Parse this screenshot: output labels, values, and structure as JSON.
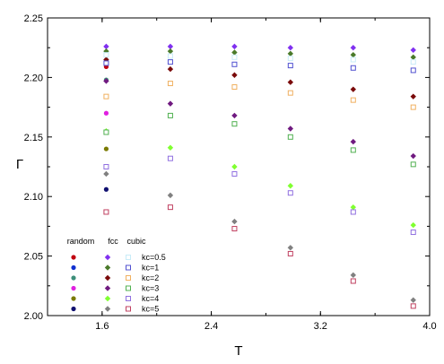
{
  "chart_data": {
    "type": "scatter",
    "title": "",
    "xlabel": "T",
    "ylabel": "Γ",
    "xlim": [
      1.2,
      4.0
    ],
    "ylim": [
      2.0,
      2.25
    ],
    "xticks": [
      1.6,
      2.4,
      3.2,
      4.0
    ],
    "xtick_labels": [
      "1.6",
      "2.4",
      "3.2",
      "4.0"
    ],
    "yticks": [
      2.0,
      2.05,
      2.1,
      2.15,
      2.2,
      2.25
    ],
    "ytick_labels": [
      "2.00",
      "2.05",
      "2.10",
      "2.15",
      "2.20",
      "2.25"
    ],
    "grid": false,
    "legend": {
      "position": "bottom-left",
      "column_headers": [
        "random",
        "fcc",
        "cubic"
      ],
      "rows": [
        "kc=0.5",
        "kc=1",
        "kc=2",
        "kc=3",
        "kc=4",
        "kc=5"
      ]
    },
    "kc_colors": [
      "#c00010",
      "#1030d0",
      "#3d8f7a",
      "#e020e0",
      "#7a7a00",
      "#101070"
    ],
    "fcc_colors": [
      "#8030f0",
      "#4a7a2a",
      "#7a0a0a",
      "#701a80",
      "#80ff30",
      "#808080"
    ],
    "cubic_colors": [
      "#c8ecf8",
      "#5050d0",
      "#f0b060",
      "#50b050",
      "#9070e0",
      "#c04060"
    ],
    "series": [
      {
        "lattice": "random",
        "kc": "kc=0.5",
        "x": [
          1.63
        ],
        "y": [
          2.209
        ]
      },
      {
        "lattice": "random",
        "kc": "kc=1",
        "x": [
          1.63
        ],
        "y": [
          2.213
        ]
      },
      {
        "lattice": "random",
        "kc": "kc=2",
        "x": [
          1.63
        ],
        "y": [
          2.198
        ]
      },
      {
        "lattice": "random",
        "kc": "kc=3",
        "x": [
          1.63
        ],
        "y": [
          2.17
        ]
      },
      {
        "lattice": "random",
        "kc": "kc=4",
        "x": [
          1.63
        ],
        "y": [
          2.14
        ]
      },
      {
        "lattice": "random",
        "kc": "kc=5",
        "x": [
          1.63
        ],
        "y": [
          2.106
        ]
      },
      {
        "lattice": "fcc",
        "kc": "kc=0.5",
        "x": [
          1.63,
          2.1,
          2.57,
          2.98,
          3.44,
          3.88
        ],
        "y": [
          2.226,
          2.226,
          2.226,
          2.225,
          2.225,
          2.223
        ]
      },
      {
        "lattice": "fcc",
        "kc": "kc=1",
        "x": [
          1.63,
          2.1,
          2.57,
          2.98,
          3.44,
          3.88
        ],
        "y": [
          2.222,
          2.222,
          2.221,
          2.22,
          2.219,
          2.217
        ]
      },
      {
        "lattice": "fcc",
        "kc": "kc=2",
        "x": [
          1.63,
          2.1,
          2.57,
          2.98,
          3.44,
          3.88
        ],
        "y": [
          2.215,
          2.207,
          2.202,
          2.196,
          2.19,
          2.184
        ]
      },
      {
        "lattice": "fcc",
        "kc": "kc=3",
        "x": [
          1.63,
          2.1,
          2.57,
          2.98,
          3.44,
          3.88
        ],
        "y": [
          2.197,
          2.178,
          2.168,
          2.157,
          2.146,
          2.134
        ]
      },
      {
        "lattice": "fcc",
        "kc": "kc=4",
        "x": [
          1.63,
          2.1,
          2.57,
          2.98,
          3.44,
          3.88
        ],
        "y": [
          2.155,
          2.141,
          2.125,
          2.109,
          2.091,
          2.076
        ]
      },
      {
        "lattice": "fcc",
        "kc": "kc=5",
        "x": [
          1.63,
          2.1,
          2.57,
          2.98,
          3.44,
          3.88
        ],
        "y": [
          2.119,
          2.101,
          2.079,
          2.057,
          2.034,
          2.013
        ]
      },
      {
        "lattice": "cubic",
        "kc": "kc=0.5",
        "x": [
          1.63,
          2.1,
          2.57,
          2.98,
          3.44,
          3.88
        ],
        "y": [
          2.219,
          2.218,
          2.217,
          2.216,
          2.215,
          2.213
        ]
      },
      {
        "lattice": "cubic",
        "kc": "kc=1",
        "x": [
          1.63,
          2.1,
          2.57,
          2.98,
          3.44,
          3.88
        ],
        "y": [
          2.212,
          2.213,
          2.211,
          2.21,
          2.208,
          2.206
        ]
      },
      {
        "lattice": "cubic",
        "kc": "kc=2",
        "x": [
          1.63,
          2.1,
          2.57,
          2.98,
          3.44,
          3.88
        ],
        "y": [
          2.184,
          2.195,
          2.192,
          2.187,
          2.181,
          2.175
        ]
      },
      {
        "lattice": "cubic",
        "kc": "kc=3",
        "x": [
          1.63,
          2.1,
          2.57,
          2.98,
          3.44,
          3.88
        ],
        "y": [
          2.154,
          2.168,
          2.161,
          2.15,
          2.139,
          2.127
        ]
      },
      {
        "lattice": "cubic",
        "kc": "kc=4",
        "x": [
          1.63,
          2.1,
          2.57,
          2.98,
          3.44,
          3.88
        ],
        "y": [
          2.125,
          2.132,
          2.119,
          2.103,
          2.087,
          2.07
        ]
      },
      {
        "lattice": "cubic",
        "kc": "kc=5",
        "x": [
          1.63,
          2.1,
          2.57,
          2.98,
          3.44,
          3.88
        ],
        "y": [
          2.087,
          2.091,
          2.073,
          2.052,
          2.029,
          2.008
        ]
      }
    ]
  }
}
